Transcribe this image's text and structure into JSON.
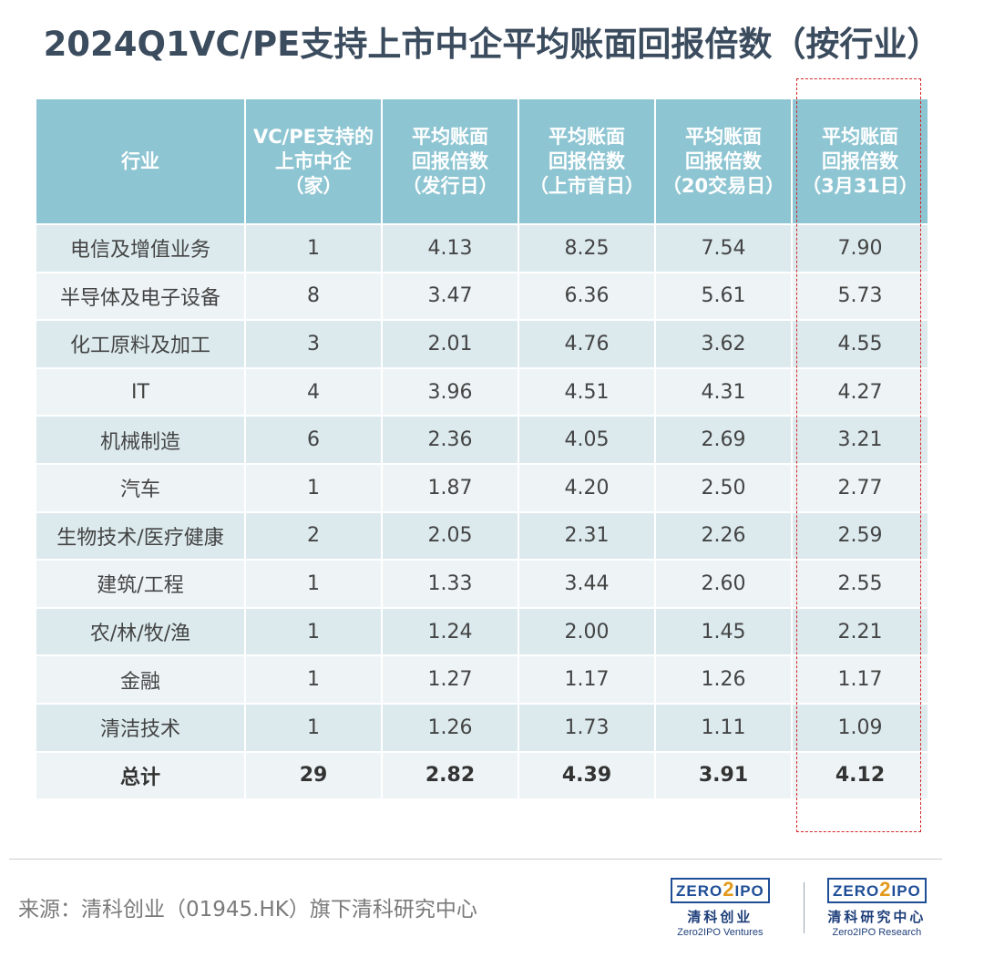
{
  "title": "2024Q1VC/PE支持上市中企平均账面回报倍数（按行业）",
  "chart_data": {
    "type": "table",
    "columns": [
      "行业",
      "VC/PE支持的上市中企（家）",
      "平均账面回报倍数（发行日）",
      "平均账面回报倍数（上市首日）",
      "平均账面回报倍数（20交易日）",
      "平均账面回报倍数（3月31日）"
    ],
    "header_lines": [
      [
        "行业"
      ],
      [
        "VC/PE支持的",
        "上市中企",
        "（家）"
      ],
      [
        "平均账面",
        "回报倍数",
        "（发行日）"
      ],
      [
        "平均账面",
        "回报倍数",
        "（上市首日）"
      ],
      [
        "平均账面",
        "回报倍数",
        "（20交易日）"
      ],
      [
        "平均账面",
        "回报倍数",
        "（3月31日）"
      ]
    ],
    "rows": [
      [
        "电信及增值业务",
        "1",
        "4.13",
        "8.25",
        "7.54",
        "7.90"
      ],
      [
        "半导体及电子设备",
        "8",
        "3.47",
        "6.36",
        "5.61",
        "5.73"
      ],
      [
        "化工原料及加工",
        "3",
        "2.01",
        "4.76",
        "3.62",
        "4.55"
      ],
      [
        "IT",
        "4",
        "3.96",
        "4.51",
        "4.31",
        "4.27"
      ],
      [
        "机械制造",
        "6",
        "2.36",
        "4.05",
        "2.69",
        "3.21"
      ],
      [
        "汽车",
        "1",
        "1.87",
        "4.20",
        "2.50",
        "2.77"
      ],
      [
        "生物技术/医疗健康",
        "2",
        "2.05",
        "2.31",
        "2.26",
        "2.59"
      ],
      [
        "建筑/工程",
        "1",
        "1.33",
        "3.44",
        "2.60",
        "2.55"
      ],
      [
        "农/林/牧/渔",
        "1",
        "1.24",
        "2.00",
        "1.45",
        "2.21"
      ],
      [
        "金融",
        "1",
        "1.27",
        "1.17",
        "1.26",
        "1.17"
      ],
      [
        "清洁技术",
        "1",
        "1.26",
        "1.73",
        "1.11",
        "1.09"
      ]
    ],
    "total": [
      "总计",
      "29",
      "2.82",
      "4.39",
      "3.91",
      "4.12"
    ],
    "highlighted_column": 5
  },
  "colors": {
    "header_bg": "#8ec5d2",
    "row_odd": "#dceaee",
    "row_even": "#eef4f6",
    "highlight_border": "#d32424",
    "title": "#3b4c5e"
  },
  "footer": {
    "source": "来源：清科创业（01945.HK）旗下清科研究中心",
    "logo_ventures": {
      "mark_left": "ZERO",
      "mark_two": "2",
      "mark_right": "IPO",
      "cn": "清科创业",
      "en": "Zero2IPO Ventures"
    },
    "logo_research": {
      "mark_left": "ZERO",
      "mark_two": "2",
      "mark_right": "IPO",
      "cn": "清科研究中心",
      "en": "Zero2IPO Research"
    }
  }
}
